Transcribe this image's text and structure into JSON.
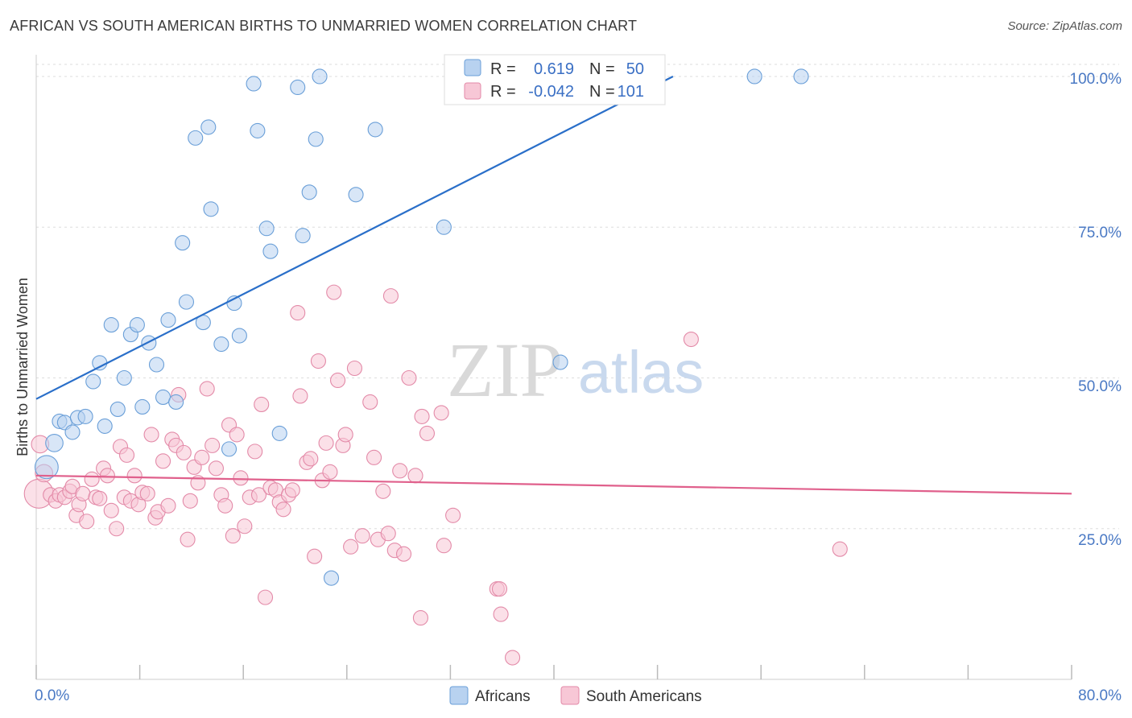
{
  "header": {
    "title": "AFRICAN VS SOUTH AMERICAN BIRTHS TO UNMARRIED WOMEN CORRELATION CHART",
    "source": "Source: ZipAtlas.com"
  },
  "watermark": {
    "zip": "ZIP",
    "atlas": "atlas"
  },
  "colors": {
    "africans_fill": "#b8d2f0",
    "africans_stroke": "#6a9fd8",
    "africans_line": "#2a6fc9",
    "south_fill": "#f7c7d6",
    "south_stroke": "#e38aa8",
    "south_line": "#e0608c",
    "axis_text": "#4a79c4",
    "grid": "#dddddd"
  },
  "legend_top": {
    "rows": [
      {
        "r_label": "R =",
        "r_value": "0.619",
        "n_label": "N =",
        "n_value": "50"
      },
      {
        "r_label": "R =",
        "r_value": "-0.042",
        "n_label": "N =",
        "n_value": "101"
      }
    ]
  },
  "legend_bottom": {
    "africans": "Africans",
    "south_americans": "South Americans"
  },
  "chart_data": {
    "type": "scatter",
    "title": "AFRICAN VS SOUTH AMERICAN BIRTHS TO UNMARRIED WOMEN CORRELATION CHART",
    "xlabel": "",
    "ylabel": "Births to Unmarried Women",
    "xlim": [
      0,
      80
    ],
    "ylim": [
      0,
      102
    ],
    "x_tick_labels": [
      "0.0%",
      "80.0%"
    ],
    "y_tick_labels": [
      "25.0%",
      "50.0%",
      "75.0%",
      "100.0%"
    ],
    "y_ticks": [
      25,
      50,
      75,
      100
    ],
    "grid": true,
    "legend": "top-center",
    "series": [
      {
        "name": "Africans",
        "R": 0.619,
        "N": 50,
        "trend": {
          "x": [
            0,
            49.2
          ],
          "y": [
            46.5,
            100
          ]
        },
        "points": [
          [
            0.8,
            35.2,
            1.6
          ],
          [
            1.4,
            39.2,
            1.2
          ],
          [
            1.8,
            42.8,
            1
          ],
          [
            2.2,
            42.6,
            1
          ],
          [
            2.8,
            41,
            1
          ],
          [
            3.2,
            43.4,
            1
          ],
          [
            3.8,
            43.6,
            1
          ],
          [
            4.4,
            49.4,
            1
          ],
          [
            4.9,
            52.5,
            1
          ],
          [
            5.3,
            42,
            1
          ],
          [
            5.8,
            58.8,
            1
          ],
          [
            6.3,
            44.8,
            1
          ],
          [
            6.8,
            50,
            1
          ],
          [
            7.3,
            57.2,
            1
          ],
          [
            7.8,
            58.8,
            1
          ],
          [
            8.2,
            45.2,
            1
          ],
          [
            8.7,
            55.8,
            1
          ],
          [
            9.3,
            52.2,
            1
          ],
          [
            9.8,
            46.8,
            1
          ],
          [
            10.2,
            59.6,
            1
          ],
          [
            10.8,
            46,
            1
          ],
          [
            11.3,
            72.4,
            1
          ],
          [
            11.6,
            62.6,
            1
          ],
          [
            12.3,
            89.8,
            1
          ],
          [
            12.9,
            59.2,
            1
          ],
          [
            13.3,
            91.6,
            1
          ],
          [
            13.5,
            78,
            1
          ],
          [
            14.3,
            55.6,
            1
          ],
          [
            14.9,
            38.2,
            1
          ],
          [
            15.3,
            62.4,
            1
          ],
          [
            15.7,
            57,
            1
          ],
          [
            16.8,
            98.8,
            1
          ],
          [
            17.1,
            91,
            1
          ],
          [
            17.8,
            74.8,
            1
          ],
          [
            18.1,
            71,
            1
          ],
          [
            18.8,
            40.8,
            1
          ],
          [
            20.2,
            98.2,
            1
          ],
          [
            20.6,
            73.6,
            1
          ],
          [
            21.1,
            80.8,
            1
          ],
          [
            21.6,
            89.6,
            1
          ],
          [
            21.9,
            100,
            1
          ],
          [
            22.8,
            16.8,
            1
          ],
          [
            24.7,
            80.4,
            1
          ],
          [
            26.2,
            91.2,
            1
          ],
          [
            31.5,
            75,
            1
          ],
          [
            40.5,
            52.6,
            1
          ],
          [
            55.5,
            100,
            1
          ],
          [
            59.1,
            100,
            1
          ]
        ]
      },
      {
        "name": "South Americans",
        "R": -0.042,
        "N": 101,
        "trend": {
          "x": [
            0,
            80
          ],
          "y": [
            33.8,
            30.8
          ]
        },
        "points": [
          [
            0.2,
            30.8,
            2
          ],
          [
            0.3,
            39,
            1.2
          ],
          [
            0.6,
            34.2,
            1.2
          ],
          [
            1.1,
            30.6,
            1
          ],
          [
            1.5,
            29.6,
            1
          ],
          [
            1.8,
            30.6,
            1
          ],
          [
            2.2,
            30.2,
            1
          ],
          [
            2.6,
            31.2,
            1
          ],
          [
            2.8,
            32,
            1
          ],
          [
            3.1,
            27.2,
            1
          ],
          [
            3.3,
            29,
            1
          ],
          [
            3.6,
            30.8,
            1
          ],
          [
            3.9,
            26.2,
            1
          ],
          [
            4.3,
            33.2,
            1
          ],
          [
            4.6,
            30.2,
            1
          ],
          [
            4.9,
            30,
            1
          ],
          [
            5.2,
            35,
            1
          ],
          [
            5.5,
            33.8,
            1
          ],
          [
            5.8,
            28,
            1
          ],
          [
            6.2,
            25,
            1
          ],
          [
            6.5,
            38.6,
            1
          ],
          [
            6.8,
            30.2,
            1
          ],
          [
            7,
            37.2,
            1
          ],
          [
            7.3,
            29.6,
            1
          ],
          [
            7.6,
            33.8,
            1
          ],
          [
            7.9,
            29,
            1
          ],
          [
            8.2,
            31,
            1
          ],
          [
            8.6,
            30.8,
            1
          ],
          [
            8.9,
            40.6,
            1
          ],
          [
            9.2,
            26.8,
            1
          ],
          [
            9.4,
            27.8,
            1
          ],
          [
            9.8,
            36.2,
            1
          ],
          [
            10.2,
            28.8,
            1
          ],
          [
            10.5,
            39.8,
            1
          ],
          [
            10.8,
            38.8,
            1
          ],
          [
            11,
            47.2,
            1
          ],
          [
            11.4,
            37.6,
            1
          ],
          [
            11.7,
            23.2,
            1
          ],
          [
            11.9,
            29.6,
            1
          ],
          [
            12.2,
            35.2,
            1
          ],
          [
            12.5,
            32.6,
            1
          ],
          [
            12.8,
            36.8,
            1
          ],
          [
            13.2,
            48.2,
            1
          ],
          [
            13.6,
            38.8,
            1
          ],
          [
            13.9,
            35,
            1
          ],
          [
            14.3,
            30.6,
            1
          ],
          [
            14.6,
            28.8,
            1
          ],
          [
            14.9,
            42.2,
            1
          ],
          [
            15.2,
            23.8,
            1
          ],
          [
            15.5,
            40.6,
            1
          ],
          [
            15.8,
            33.4,
            1
          ],
          [
            16.1,
            25.4,
            1
          ],
          [
            16.5,
            30.2,
            1
          ],
          [
            16.9,
            37.8,
            1
          ],
          [
            17.2,
            30.6,
            1
          ],
          [
            17.4,
            45.6,
            1
          ],
          [
            17.7,
            13.6,
            1
          ],
          [
            18.1,
            31.8,
            1
          ],
          [
            18.5,
            31.4,
            1
          ],
          [
            18.8,
            29.4,
            1
          ],
          [
            19.1,
            28.2,
            1
          ],
          [
            19.5,
            30.6,
            1
          ],
          [
            19.8,
            31.4,
            1
          ],
          [
            20.2,
            60.8,
            1
          ],
          [
            20.4,
            47,
            1
          ],
          [
            20.9,
            36,
            1
          ],
          [
            21.2,
            36.6,
            1
          ],
          [
            21.5,
            20.4,
            1
          ],
          [
            21.8,
            52.8,
            1
          ],
          [
            22.1,
            33,
            1
          ],
          [
            22.4,
            39.2,
            1
          ],
          [
            22.7,
            34.4,
            1
          ],
          [
            23,
            64.2,
            1
          ],
          [
            23.3,
            49.6,
            1
          ],
          [
            23.7,
            38.8,
            1
          ],
          [
            23.9,
            40.6,
            1
          ],
          [
            24.3,
            22,
            1
          ],
          [
            24.6,
            51.6,
            1
          ],
          [
            25.2,
            23.8,
            1
          ],
          [
            25.8,
            46,
            1
          ],
          [
            26.1,
            36.8,
            1
          ],
          [
            26.4,
            23.2,
            1
          ],
          [
            26.8,
            31.2,
            1
          ],
          [
            27.2,
            24.2,
            1
          ],
          [
            27.4,
            63.6,
            1
          ],
          [
            27.7,
            21.4,
            1
          ],
          [
            28.1,
            34.6,
            1
          ],
          [
            28.4,
            20.8,
            1
          ],
          [
            28.8,
            50,
            1
          ],
          [
            29.3,
            33.8,
            1
          ],
          [
            29.7,
            10.2,
            1
          ],
          [
            29.8,
            43.6,
            1
          ],
          [
            30.2,
            40.8,
            1
          ],
          [
            31.3,
            44.2,
            1
          ],
          [
            31.5,
            22.2,
            1
          ],
          [
            32.2,
            27.2,
            1
          ],
          [
            35.6,
            15,
            1
          ],
          [
            35.8,
            15,
            1
          ],
          [
            35.9,
            10.8,
            1
          ],
          [
            36.8,
            3.6,
            1
          ],
          [
            50.6,
            56.4,
            1
          ],
          [
            62.1,
            21.6,
            1
          ]
        ]
      }
    ]
  }
}
